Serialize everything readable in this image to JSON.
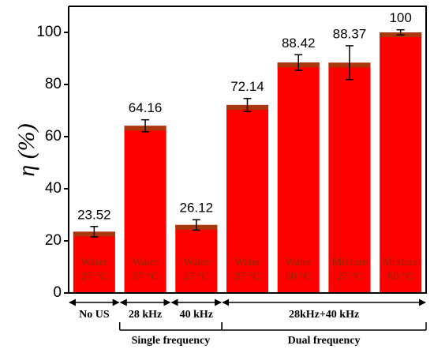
{
  "chart_data": {
    "type": "bar",
    "y_label": "η (%)",
    "categories": [
      [
        "Water",
        "27 °C"
      ],
      [
        "Water",
        "27 °C"
      ],
      [
        "Water",
        "27 °C"
      ],
      [
        "Water",
        "27 °C"
      ],
      [
        "Water",
        "60 °C"
      ],
      [
        "Mixture",
        "27 °C"
      ],
      [
        "Mixture",
        "60 °C"
      ]
    ],
    "values": [
      23.52,
      64.16,
      26.12,
      72.14,
      88.42,
      88.37,
      100
    ],
    "errors": [
      2,
      2.3,
      2,
      2.5,
      3,
      6.5,
      1
    ],
    "color": "#ff0000",
    "ylim": [
      0,
      110
    ],
    "yticks": [
      0,
      20,
      40,
      60,
      80,
      100
    ],
    "groups": [
      {
        "label": "No US",
        "count": 1
      },
      {
        "label": "28 kHz",
        "count": 1
      },
      {
        "label": "40 kHz",
        "count": 1
      },
      {
        "label": "28kHz+40 kHz",
        "count": 4
      }
    ],
    "super_groups": [
      {
        "label": null,
        "count": 1
      },
      {
        "label": "Single frequency",
        "count": 2
      },
      {
        "label": "Dual frequency",
        "count": 4
      }
    ]
  }
}
